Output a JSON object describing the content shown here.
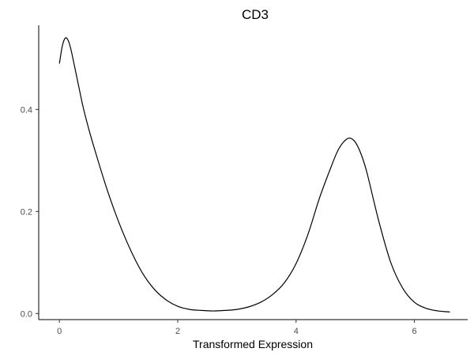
{
  "chart_data": {
    "type": "line",
    "title": "CD3",
    "xlabel": "Transformed Expression",
    "ylabel": "",
    "xlim": [
      -0.35,
      6.9
    ],
    "ylim": [
      -0.012,
      0.565
    ],
    "xticks": [
      0,
      2,
      4,
      6
    ],
    "xtick_labels": [
      "0",
      "2",
      "4",
      "6"
    ],
    "yticks": [
      0.0,
      0.2,
      0.4
    ],
    "ytick_labels": [
      "0.0",
      "0.2",
      "0.4"
    ],
    "grid": false,
    "legend": "none",
    "series": [
      {
        "color": "#000000",
        "x": [
          0.0,
          0.05,
          0.1,
          0.15,
          0.2,
          0.3,
          0.4,
          0.5,
          0.6,
          0.8,
          1.0,
          1.2,
          1.4,
          1.6,
          1.8,
          2.0,
          2.2,
          2.4,
          2.6,
          2.8,
          3.0,
          3.2,
          3.4,
          3.6,
          3.8,
          4.0,
          4.2,
          4.4,
          4.6,
          4.7,
          4.8,
          4.9,
          5.0,
          5.1,
          5.2,
          5.4,
          5.6,
          5.8,
          6.0,
          6.2,
          6.4,
          6.6
        ],
        "y": [
          0.49,
          0.525,
          0.54,
          0.535,
          0.515,
          0.46,
          0.405,
          0.36,
          0.32,
          0.245,
          0.18,
          0.125,
          0.08,
          0.048,
          0.027,
          0.014,
          0.008,
          0.006,
          0.005,
          0.006,
          0.008,
          0.013,
          0.022,
          0.037,
          0.06,
          0.098,
          0.155,
          0.228,
          0.29,
          0.318,
          0.336,
          0.344,
          0.336,
          0.312,
          0.275,
          0.18,
          0.1,
          0.05,
          0.022,
          0.01,
          0.005,
          0.003
        ]
      }
    ]
  }
}
